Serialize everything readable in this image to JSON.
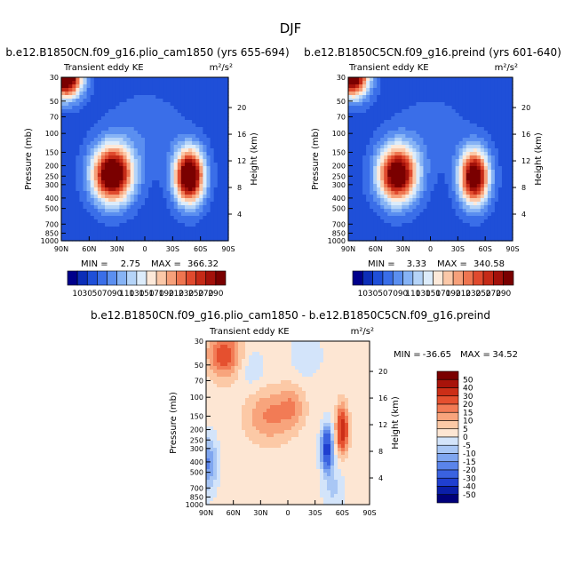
{
  "page_title": "DJF",
  "colors": {
    "pos_scale": [
      "#00008b",
      "#0c2eb8",
      "#1f4fd8",
      "#3a6ee8",
      "#5b8ff0",
      "#86b3f5",
      "#b5d4f8",
      "#dcecfb",
      "#fde9d9",
      "#fbc8a8",
      "#f6a07a",
      "#ee7550",
      "#e04a2e",
      "#c52a17",
      "#a3110a",
      "#7a0000"
    ],
    "div_scale": [
      "#00007a",
      "#0a1ea8",
      "#1f3fd0",
      "#3a62e0",
      "#5a84ea",
      "#7fa6f0",
      "#a9c7f5",
      "#d3e4fa",
      "#fde6d3",
      "#fcc9a6",
      "#f8a47c",
      "#f27b55",
      "#e5502f",
      "#cc2e17",
      "#a8130a",
      "#7a0000"
    ]
  },
  "chart_data": [
    {
      "type": "heatmap",
      "title": "b.e12.B1850CN.f09_g16.plio_cam1850 (yrs 655-694)",
      "left_label": "Transient eddy KE",
      "units": "m²/s²",
      "xlabel": "",
      "ylabel": "Pressure (mb)",
      "right_label": "Height (km)",
      "x_ticks": [
        "90N",
        "60N",
        "30N",
        "0",
        "30S",
        "60S",
        "90S"
      ],
      "y_ticks": [
        "30",
        "50",
        "70",
        "100",
        "150",
        "200",
        "250",
        "300",
        "400",
        "500",
        "700",
        "850",
        "1000"
      ],
      "y_ticks_values": [
        30,
        50,
        70,
        100,
        150,
        200,
        250,
        300,
        400,
        500,
        700,
        850,
        1000
      ],
      "height_ticks": [
        "4",
        "8",
        "12",
        "16",
        "20"
      ],
      "xlim": [
        90,
        -90
      ],
      "ylim": [
        30,
        1000
      ],
      "min_label": "MIN =",
      "min_value": "2.75",
      "max_label": "MAX =",
      "max_value": "366.32",
      "min": 2.75,
      "max": 366.32,
      "colorbar_labels": [
        "10",
        "30",
        "50",
        "70",
        "90",
        "110",
        "130",
        "150",
        "170",
        "190",
        "210",
        "230",
        "250",
        "270",
        "290"
      ],
      "field": {
        "background": 40,
        "features": [
          {
            "lat": 35,
            "p": 240,
            "amp": 320,
            "wlat": 15,
            "wp": 0.42
          },
          {
            "lat": -48,
            "p": 250,
            "amp": 330,
            "wlat": 11,
            "wp": 0.4
          },
          {
            "lat": 85,
            "p": 30,
            "amp": 330,
            "wlat": 12,
            "wp": 0.3
          },
          {
            "lat": 0,
            "p": 100,
            "amp": 25,
            "wlat": 30,
            "wp": 0.6
          }
        ]
      }
    },
    {
      "type": "heatmap",
      "title": "b.e12.B1850C5CN.f09_g16.preind (yrs 601-640)",
      "left_label": "Transient eddy KE",
      "units": "m²/s²",
      "xlabel": "",
      "ylabel": "Pressure (mb)",
      "right_label": "Height (km)",
      "x_ticks": [
        "90N",
        "60N",
        "30N",
        "0",
        "30S",
        "60S",
        "90S"
      ],
      "y_ticks": [
        "30",
        "50",
        "70",
        "100",
        "150",
        "200",
        "250",
        "300",
        "400",
        "500",
        "700",
        "850",
        "1000"
      ],
      "y_ticks_values": [
        30,
        50,
        70,
        100,
        150,
        200,
        250,
        300,
        400,
        500,
        700,
        850,
        1000
      ],
      "height_ticks": [
        "4",
        "8",
        "12",
        "16",
        "20"
      ],
      "xlim": [
        90,
        -90
      ],
      "ylim": [
        30,
        1000
      ],
      "min_label": "MIN =",
      "min_value": "3.33",
      "max_label": "MAX =",
      "max_value": "340.58",
      "min": 3.33,
      "max": 340.58,
      "colorbar_labels": [
        "10",
        "30",
        "50",
        "70",
        "90",
        "110",
        "130",
        "150",
        "170",
        "190",
        "210",
        "230",
        "250",
        "270",
        "290"
      ],
      "field": {
        "background": 40,
        "features": [
          {
            "lat": 36,
            "p": 240,
            "amp": 300,
            "wlat": 15,
            "wp": 0.42
          },
          {
            "lat": -48,
            "p": 255,
            "amp": 305,
            "wlat": 11,
            "wp": 0.4
          },
          {
            "lat": 85,
            "p": 30,
            "amp": 300,
            "wlat": 12,
            "wp": 0.3
          },
          {
            "lat": 0,
            "p": 100,
            "amp": 20,
            "wlat": 30,
            "wp": 0.6
          }
        ]
      }
    },
    {
      "type": "heatmap",
      "title": "b.e12.B1850CN.f09_g16.plio_cam1850 - b.e12.B1850C5CN.f09_g16.preind",
      "left_label": "Transient eddy KE",
      "units": "m²/s²",
      "xlabel": "",
      "ylabel": "Pressure (mb)",
      "right_label": "Height (km)",
      "x_ticks": [
        "90N",
        "60N",
        "30N",
        "0",
        "30S",
        "60S",
        "90S"
      ],
      "y_ticks": [
        "30",
        "50",
        "70",
        "100",
        "150",
        "200",
        "250",
        "300",
        "400",
        "500",
        "700",
        "850",
        "1000"
      ],
      "y_ticks_values": [
        30,
        50,
        70,
        100,
        150,
        200,
        250,
        300,
        400,
        500,
        700,
        850,
        1000
      ],
      "height_ticks": [
        "4",
        "8",
        "12",
        "16",
        "20"
      ],
      "xlim": [
        90,
        -90
      ],
      "ylim": [
        30,
        1000
      ],
      "min_label": "MIN =",
      "min_value": "-36.65",
      "max_label": "MAX =",
      "max_value": "34.52",
      "min": -36.65,
      "max": 34.52,
      "colorbar_labels": [
        "50",
        "40",
        "30",
        "20",
        "15",
        "10",
        "5",
        "0",
        "-5",
        "-10",
        "-15",
        "-20",
        "-30",
        "-40",
        "-50"
      ],
      "field": {
        "background": 2,
        "features": [
          {
            "lat": 70,
            "p": 40,
            "amp": 22,
            "wlat": 13,
            "wp": 0.35
          },
          {
            "lat": 20,
            "p": 150,
            "amp": 14,
            "wlat": 18,
            "wp": 0.4
          },
          {
            "lat": -5,
            "p": 120,
            "amp": 10,
            "wlat": 10,
            "wp": 0.3
          },
          {
            "lat": -60,
            "p": 200,
            "amp": 34,
            "wlat": 4.5,
            "wp": 0.35
          },
          {
            "lat": -43,
            "p": 300,
            "amp": -36,
            "wlat": 4.5,
            "wp": 0.32
          },
          {
            "lat": 88,
            "p": 420,
            "amp": -18,
            "wlat": 7,
            "wp": 0.4
          },
          {
            "lat": 40,
            "p": 55,
            "amp": -6,
            "wlat": 10,
            "wp": 0.3
          },
          {
            "lat": -20,
            "p": 40,
            "amp": -6,
            "wlat": 12,
            "wp": 0.35
          },
          {
            "lat": -50,
            "p": 700,
            "amp": -8,
            "wlat": 8,
            "wp": 0.4
          }
        ]
      }
    }
  ]
}
